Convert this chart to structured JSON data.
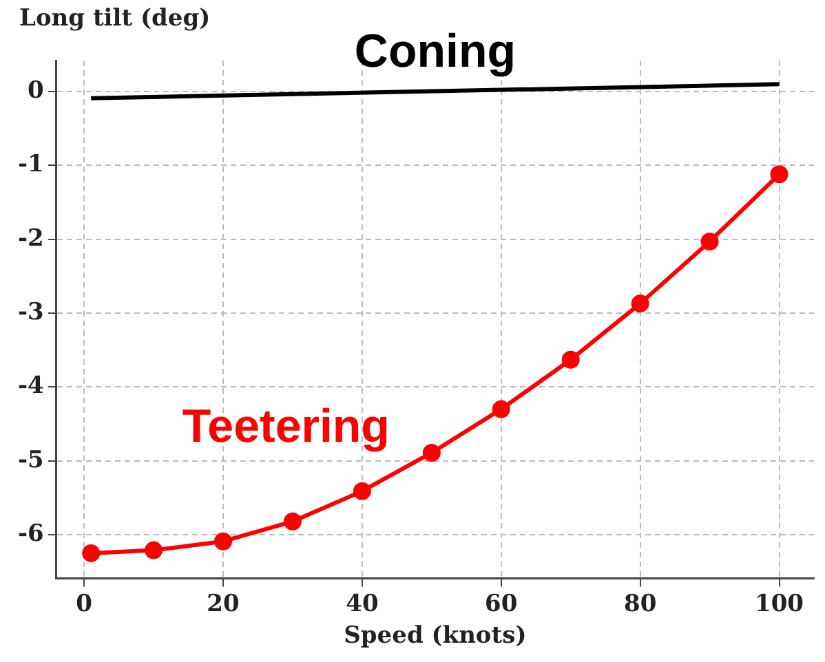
{
  "chart_data": {
    "type": "line",
    "xlabel": "Speed (knots)",
    "ylabel": "Long tilt (deg)",
    "xlim": [
      -4,
      105
    ],
    "xticks": [
      0,
      20,
      40,
      60,
      80,
      100
    ],
    "ylim": [
      -6.59,
      0.42
    ],
    "yticks": [
      -6,
      -5,
      -4,
      -3,
      -2,
      -1,
      0
    ],
    "grid": true,
    "legend": false,
    "series": [
      {
        "name": "Coning",
        "color": "#000000",
        "marker": "none",
        "x": [
          1,
          100
        ],
        "values": [
          -0.09,
          0.1
        ]
      },
      {
        "name": "Teetering",
        "color": "#ff0000",
        "marker": "circle",
        "x": [
          1,
          10,
          20,
          30,
          40,
          50,
          60,
          70,
          80,
          90,
          100
        ],
        "values": [
          -6.25,
          -6.21,
          -6.09,
          -5.82,
          -5.41,
          -4.89,
          -4.3,
          -3.63,
          -2.87,
          -2.03,
          -1.12
        ]
      }
    ]
  }
}
